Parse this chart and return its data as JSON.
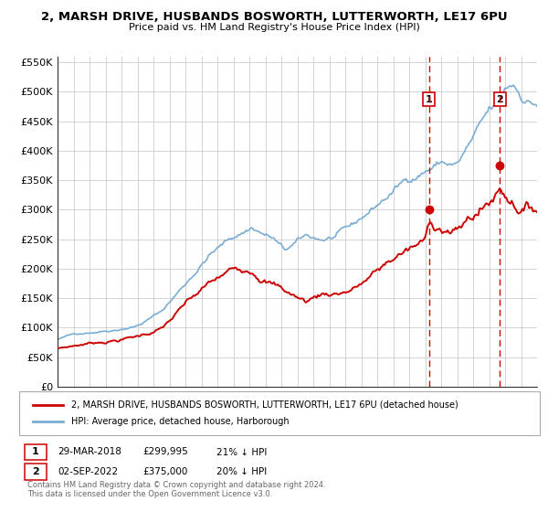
{
  "title": "2, MARSH DRIVE, HUSBANDS BOSWORTH, LUTTERWORTH, LE17 6PU",
  "subtitle": "Price paid vs. HM Land Registry's House Price Index (HPI)",
  "legend_line1": "2, MARSH DRIVE, HUSBANDS BOSWORTH, LUTTERWORTH, LE17 6PU (detached house)",
  "legend_line2": "HPI: Average price, detached house, Harborough",
  "label1_date": "29-MAR-2018",
  "label1_price": "£299,995",
  "label1_hpi": "21% ↓ HPI",
  "label2_date": "02-SEP-2022",
  "label2_price": "£375,000",
  "label2_hpi": "20% ↓ HPI",
  "sale1_year": 2018.23,
  "sale1_value": 299995,
  "sale2_year": 2022.67,
  "sale2_value": 375000,
  "red_color": "#cc0000",
  "blue_color": "#7aadd4",
  "grid_color": "#cccccc",
  "bg_color": "#ffffff",
  "plot_bg": "#ffffff",
  "ylim": [
    0,
    560000
  ],
  "xlim_start": 1995,
  "xlim_end": 2025,
  "copyright_text": "Contains HM Land Registry data © Crown copyright and database right 2024.\nThis data is licensed under the Open Government Licence v3.0.",
  "hpi_seed": 42,
  "red_seed": 123
}
